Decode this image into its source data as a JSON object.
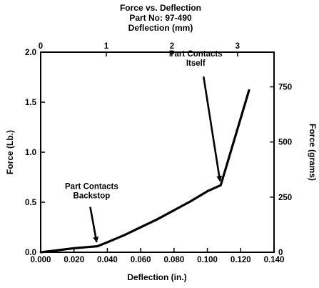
{
  "chart_data": {
    "type": "line",
    "title": [
      "Force vs. Deflection",
      "Part No: 97-490",
      "Deflection (mm)"
    ],
    "xlabel": "Deflection (in.)",
    "ylabel": "Force (Lb.)",
    "y2label": "Force (grams)",
    "x2label": "Deflection (mm)",
    "xlim": [
      0,
      0.14
    ],
    "ylim": [
      0,
      2.0
    ],
    "x2lim": [
      0,
      3.556
    ],
    "y2lim": [
      0,
      907.2
    ],
    "xticks": [
      "0.000",
      "0.020",
      "0.040",
      "0.060",
      "0.080",
      "0.100",
      "0.120",
      "0.140"
    ],
    "xtick_values": [
      0,
      0.02,
      0.04,
      0.06,
      0.08,
      0.1,
      0.12,
      0.14
    ],
    "yticks": [
      "0.0",
      "0.5",
      "1.0",
      "1.5",
      "2.0"
    ],
    "ytick_values": [
      0,
      0.5,
      1.0,
      1.5,
      2.0
    ],
    "x2ticks": [
      "0",
      "1",
      "2",
      "3"
    ],
    "x2tick_values": [
      0,
      1,
      2,
      3
    ],
    "y2ticks": [
      "0",
      "250",
      "500",
      "750"
    ],
    "y2tick_values": [
      0,
      250,
      500,
      750
    ],
    "grid": false,
    "series": [
      {
        "x": [
          0.0,
          0.01,
          0.02,
          0.03,
          0.034,
          0.04,
          0.05,
          0.06,
          0.07,
          0.08,
          0.09,
          0.1,
          0.108,
          0.125
        ],
        "y": [
          0.0,
          0.02,
          0.04,
          0.055,
          0.06,
          0.1,
          0.17,
          0.25,
          0.33,
          0.42,
          0.51,
          0.61,
          0.67,
          1.62
        ],
        "color": "#000000"
      }
    ],
    "annotations": [
      {
        "text": [
          "Part Contacts",
          "Backstop"
        ],
        "point": [
          0.034,
          0.06
        ]
      },
      {
        "text": [
          "Part Contacts",
          "Itself"
        ],
        "point": [
          0.108,
          0.67
        ]
      }
    ]
  }
}
